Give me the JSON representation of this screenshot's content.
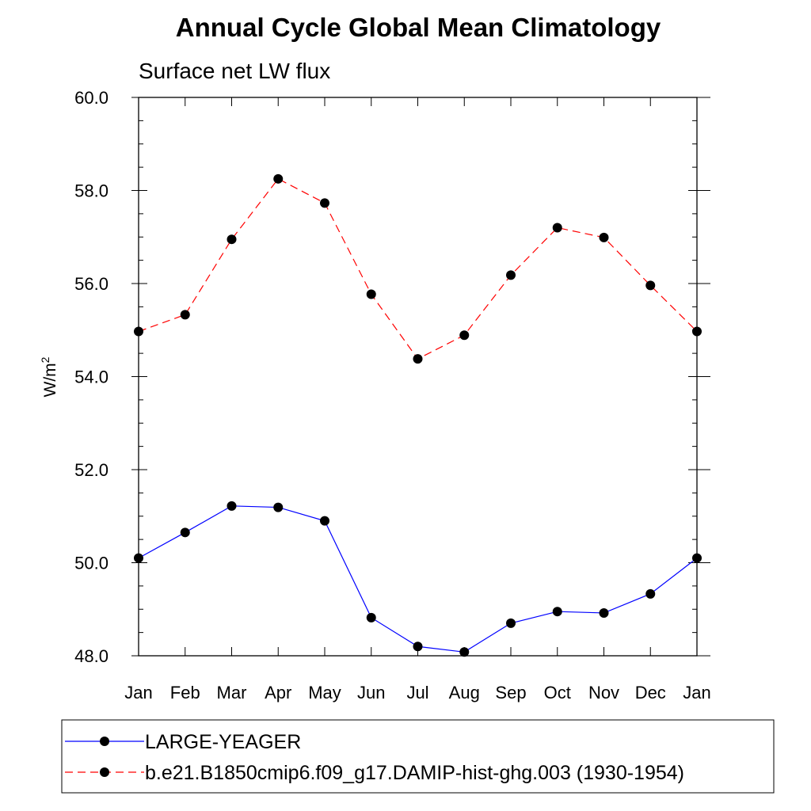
{
  "chart_data": {
    "type": "line",
    "title": "Annual Cycle Global Mean Climatology",
    "subtitle": "Surface net LW flux",
    "ylabel": "W/m",
    "ylabel_superscript": "2",
    "xlabel": "",
    "categories": [
      "Jan",
      "Feb",
      "Mar",
      "Apr",
      "May",
      "Jun",
      "Jul",
      "Aug",
      "Sep",
      "Oct",
      "Nov",
      "Dec",
      "Jan"
    ],
    "ylim": [
      48.0,
      60.0
    ],
    "yticks": [
      "48.0",
      "50.0",
      "52.0",
      "54.0",
      "56.0",
      "58.0",
      "60.0"
    ],
    "grid": false,
    "legend_position": "bottom",
    "series": [
      {
        "name": "LARGE-YEAGER",
        "color": "#0000ff",
        "line_style": "solid",
        "marker": "filled-circle",
        "values": [
          50.1,
          50.65,
          51.22,
          51.19,
          50.9,
          48.82,
          48.2,
          48.08,
          48.7,
          48.95,
          48.92,
          49.33,
          50.1
        ]
      },
      {
        "name": "b.e21.B1850cmip6.f09_g17.DAMIP-hist-ghg.003 (1930-1954)",
        "color": "#ff0000",
        "line_style": "dashed",
        "marker": "filled-circle",
        "values": [
          54.97,
          55.33,
          56.95,
          58.25,
          57.73,
          55.77,
          54.38,
          54.89,
          56.18,
          57.2,
          56.99,
          55.96,
          54.97
        ]
      }
    ]
  }
}
